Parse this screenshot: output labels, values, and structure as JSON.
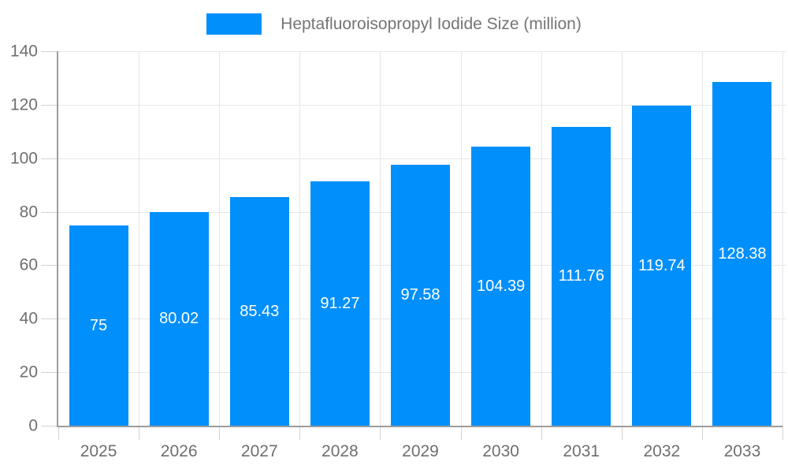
{
  "chart_data": {
    "type": "bar",
    "title": "Heptafluoroisopropyl Iodide Size (million)",
    "legend_position": "top",
    "categories": [
      "2025",
      "2026",
      "2027",
      "2028",
      "2029",
      "2030",
      "2031",
      "2032",
      "2033"
    ],
    "series": [
      {
        "name": "Heptafluoroisopropyl Iodide Size (million)",
        "values": [
          75,
          80.02,
          85.43,
          91.27,
          97.58,
          104.39,
          111.76,
          119.74,
          128.38
        ],
        "value_labels": [
          "75",
          "80.02",
          "85.43",
          "91.27",
          "97.58",
          "104.39",
          "111.76",
          "119.74",
          "128.38"
        ]
      }
    ],
    "xlabel": "",
    "ylabel": "",
    "ylim": [
      0,
      140
    ],
    "y_ticks": [
      0,
      20,
      40,
      60,
      80,
      100,
      120,
      140
    ],
    "grid": true,
    "colors": {
      "bar": "#008FFB",
      "bar_label_text": "#ffffff",
      "axis_text": "#6f6f6f",
      "legend_text": "#757575",
      "grid_line": "#e7e7e7",
      "tick_line": "#d2d2d2",
      "axis_line": "#9c9c9c",
      "background": "#ffffff"
    }
  }
}
